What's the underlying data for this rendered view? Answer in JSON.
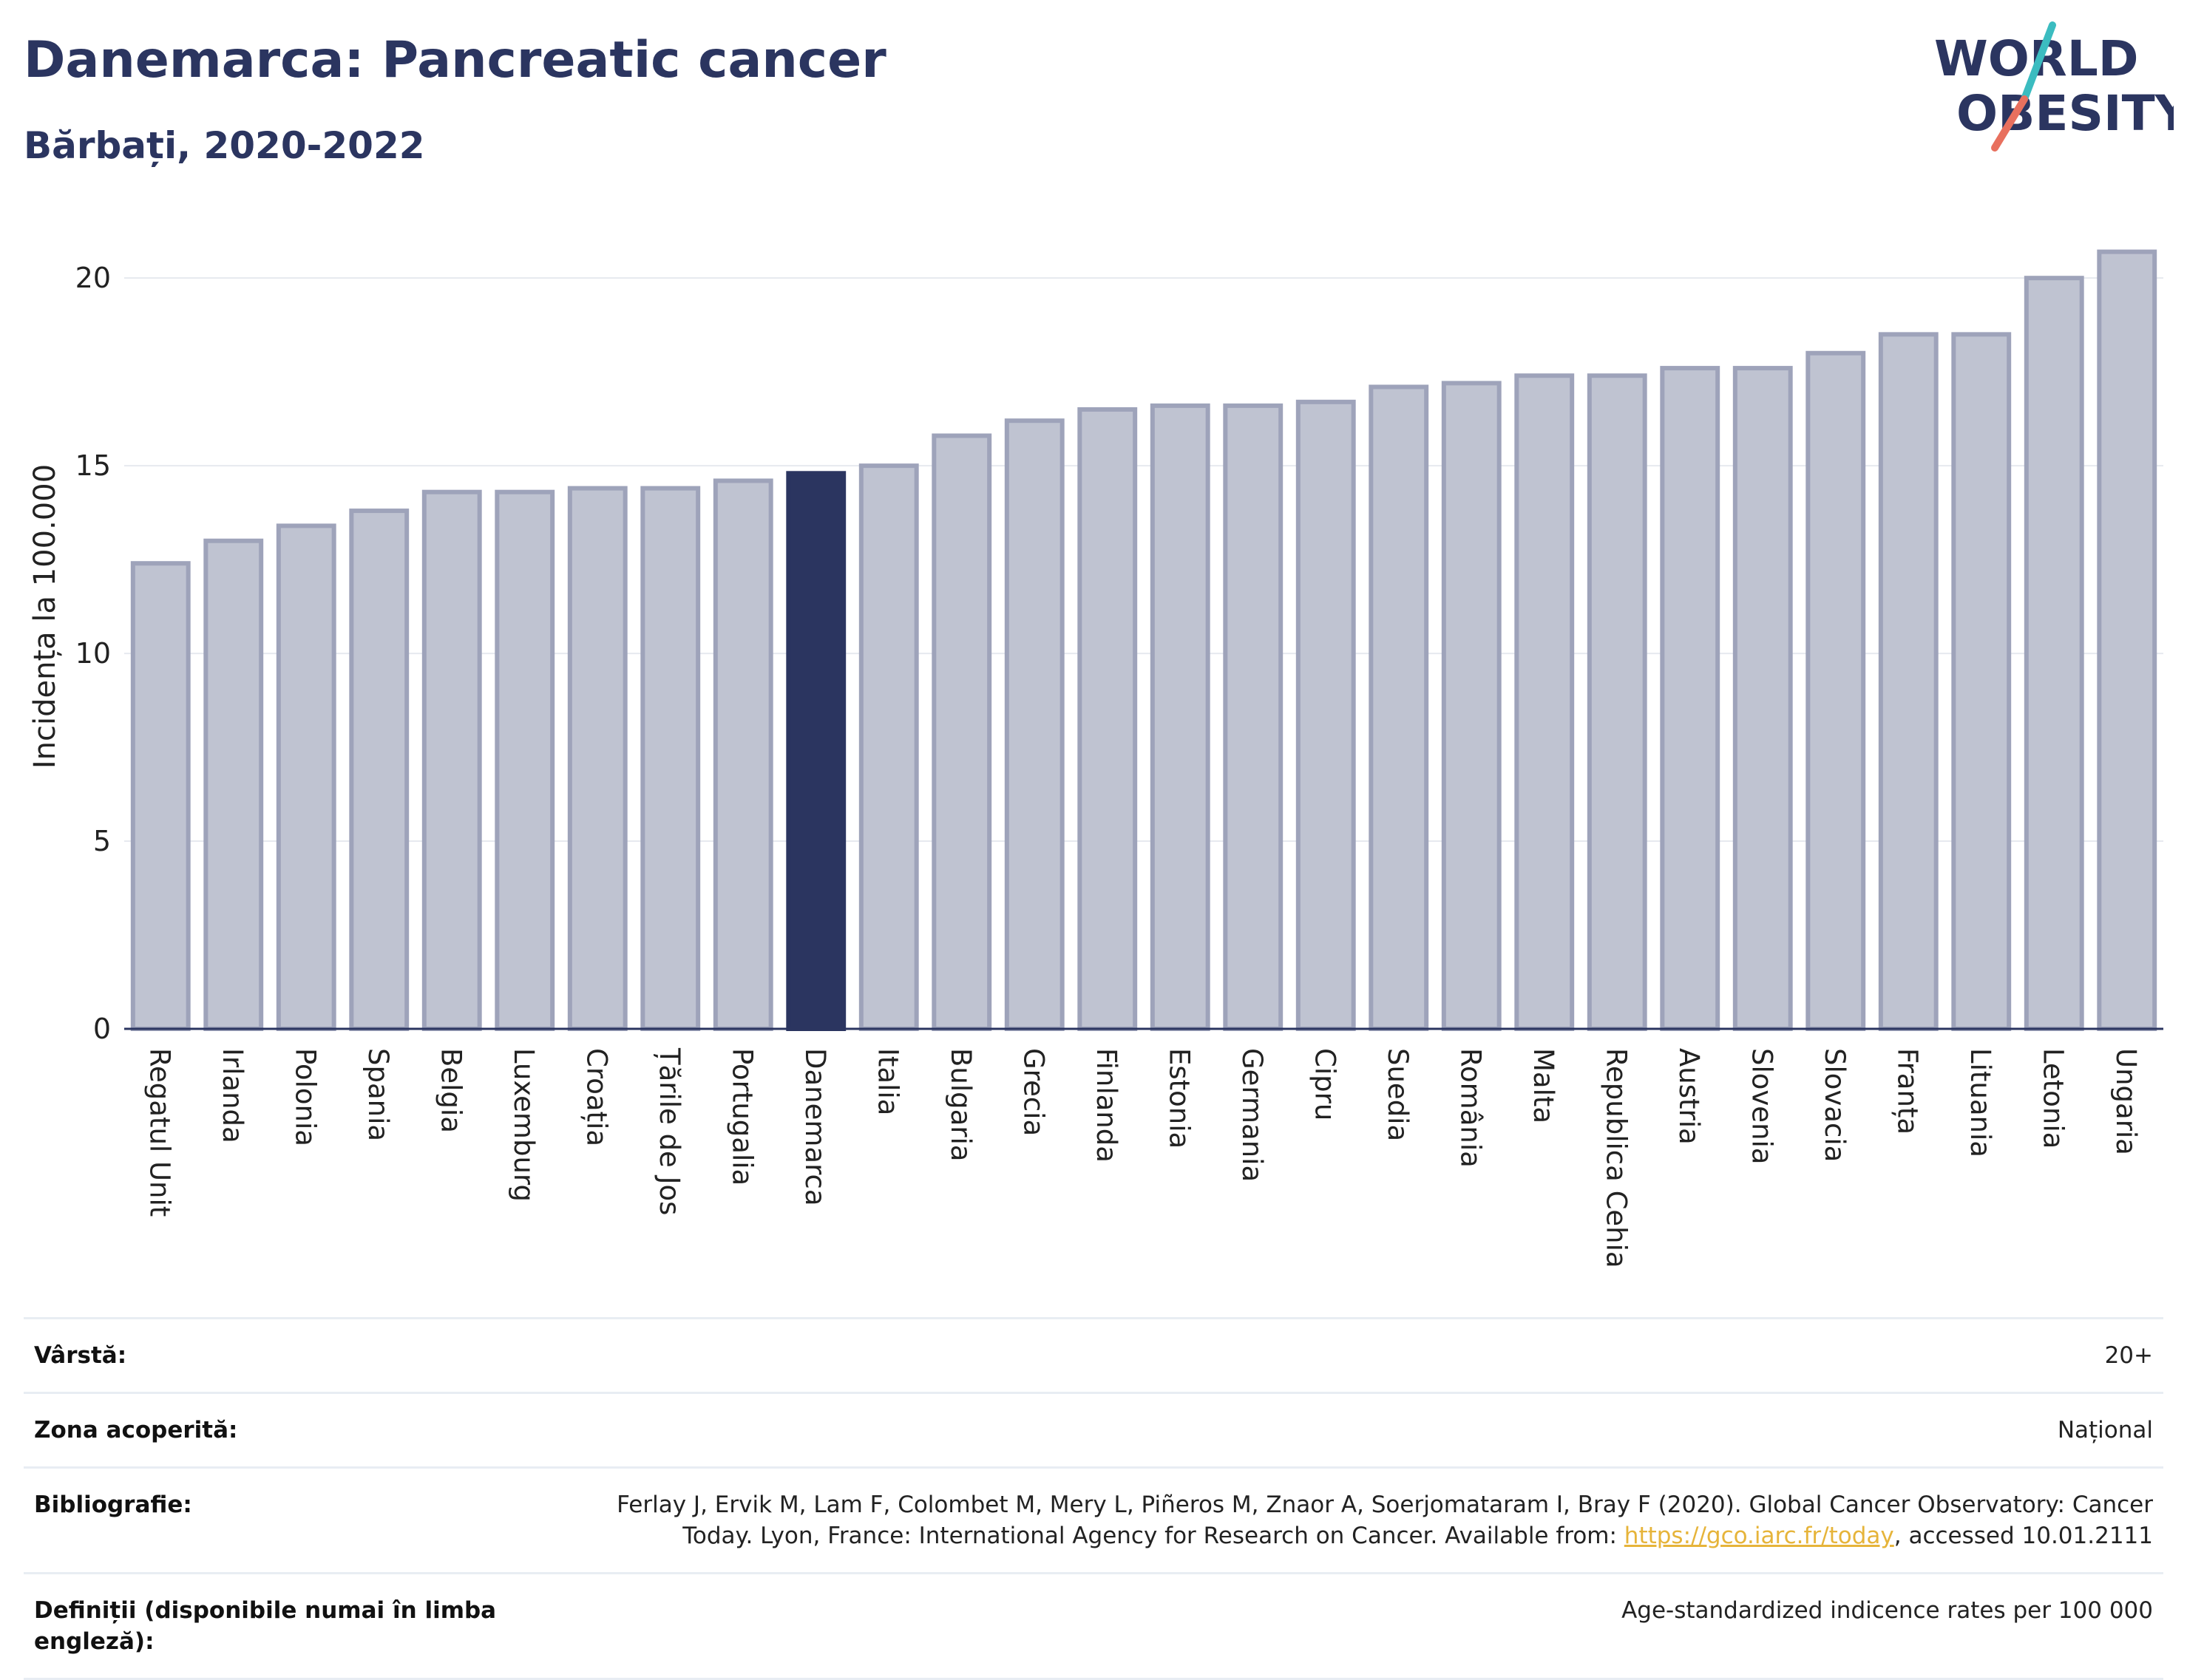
{
  "header": {
    "title": "Danemarca: Pancreatic cancer",
    "subtitle": "Bărbați, 2020-2022"
  },
  "logo": {
    "line1": "WORLD",
    "line2": "OBESITY",
    "accent_teal": "#3bbcc0",
    "accent_coral": "#e8705e"
  },
  "colors": {
    "bar_default": "#bfc3d1",
    "bar_border": "#9ea3ba",
    "bar_highlight": "#2b3560",
    "grid": "#e6e9ef",
    "text": "#2b3560"
  },
  "chart_data": {
    "type": "bar",
    "ylabel": "Incidența la 100.000",
    "ylim": [
      0,
      21.5
    ],
    "yticks": [
      0,
      5,
      10,
      15,
      20
    ],
    "highlight": "Danemarca",
    "grid": true,
    "categories": [
      "Regatul Unit",
      "Irlanda",
      "Polonia",
      "Spania",
      "Belgia",
      "Luxemburg",
      "Croația",
      "Țările de Jos",
      "Portugalia",
      "Danemarca",
      "Italia",
      "Bulgaria",
      "Grecia",
      "Finlanda",
      "Estonia",
      "Germania",
      "Cipru",
      "Suedia",
      "România",
      "Malta",
      "Republica Cehia",
      "Austria",
      "Slovenia",
      "Slovacia",
      "Franța",
      "Lituania",
      "Letonia",
      "Ungaria"
    ],
    "values": [
      12.4,
      13.0,
      13.4,
      13.8,
      14.3,
      14.3,
      14.4,
      14.4,
      14.6,
      14.8,
      15.0,
      15.8,
      16.2,
      16.5,
      16.6,
      16.6,
      16.7,
      17.1,
      17.2,
      17.4,
      17.4,
      17.6,
      17.6,
      18.0,
      18.5,
      18.5,
      20.0,
      20.7
    ]
  },
  "info": {
    "age_label": "Vârstă:",
    "age_value": "20+",
    "area_label": "Zona acoperită:",
    "area_value": "Național",
    "biblio_label": "Bibliografie:",
    "biblio_text1": "Ferlay J, Ervik M, Lam F, Colombet M, Mery L, Piñeros M, Znaor A, Soerjomataram I, Bray F (2020). Global Cancer Observatory: Cancer Today. Lyon, France: International Agency for Research on Cancer. Available from: ",
    "biblio_link": "https://gco.iarc.fr/today",
    "biblio_text2": ", accessed 10.01.2111",
    "def_label": "Definiții (disponibile numai în limba engleză):",
    "def_value": "Age-standardized indicence rates per 100 000"
  }
}
